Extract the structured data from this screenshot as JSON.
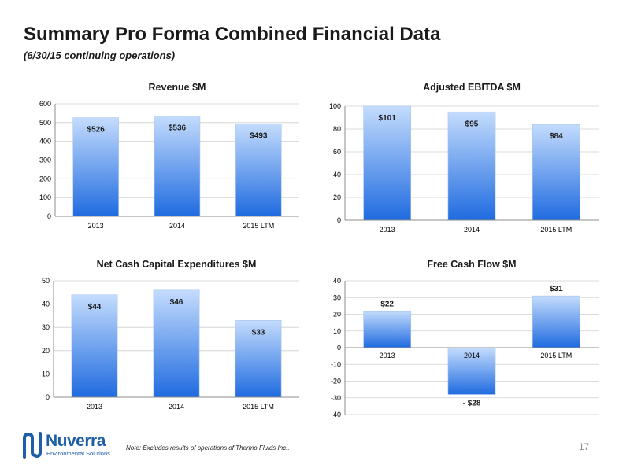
{
  "header": {
    "title": "Summary Pro Forma Combined Financial Data",
    "subtitle": "(6/30/15 continuing operations)"
  },
  "footer": {
    "logo_name": "Nuverra",
    "logo_tagline": "Environmental Solutions",
    "note": "Note: Excludes results of operations of Thermo Fluids Inc..",
    "page_number": "17"
  },
  "colors": {
    "bar_top": "#c4dcfd",
    "bar_bottom": "#1f6be0",
    "logo": "#1f5fa8"
  },
  "chart_data": [
    {
      "id": "revenue",
      "type": "bar",
      "title": "Revenue $M",
      "categories": [
        "2013",
        "2014",
        "2015 LTM"
      ],
      "values": [
        526,
        536,
        493
      ],
      "data_labels": [
        "$526",
        "$536",
        "$493"
      ],
      "ylim": [
        0,
        600
      ],
      "yticks": [
        0,
        100,
        200,
        300,
        400,
        500,
        600
      ],
      "grid": true,
      "legend": "none"
    },
    {
      "id": "ebitda",
      "type": "bar",
      "title": "Adjusted EBITDA $M",
      "categories": [
        "2013",
        "2014",
        "2015 LTM"
      ],
      "values": [
        101,
        95,
        84
      ],
      "data_labels": [
        "$101",
        "$95",
        "$84"
      ],
      "ylim": [
        0,
        100
      ],
      "yticks": [
        0,
        20,
        40,
        60,
        80,
        100
      ],
      "grid": true,
      "legend": "none"
    },
    {
      "id": "capex",
      "type": "bar",
      "title": "Net Cash Capital Expenditures $M",
      "categories": [
        "2013",
        "2014",
        "2015 LTM"
      ],
      "values": [
        44,
        46,
        33
      ],
      "data_labels": [
        "$44",
        "$46",
        "$33"
      ],
      "ylim": [
        0,
        50
      ],
      "yticks": [
        0,
        10,
        20,
        30,
        40,
        50
      ],
      "grid": true,
      "legend": "none"
    },
    {
      "id": "fcf",
      "type": "bar",
      "title": "Free Cash Flow $M",
      "categories": [
        "2013",
        "2014",
        "2015 LTM"
      ],
      "values": [
        22,
        -28,
        31
      ],
      "data_labels": [
        "$22",
        "- $28",
        "$31"
      ],
      "ylim": [
        -40,
        40
      ],
      "yticks": [
        -40,
        -30,
        -20,
        -10,
        0,
        10,
        20,
        30,
        40
      ],
      "grid": true,
      "legend": "none"
    }
  ]
}
